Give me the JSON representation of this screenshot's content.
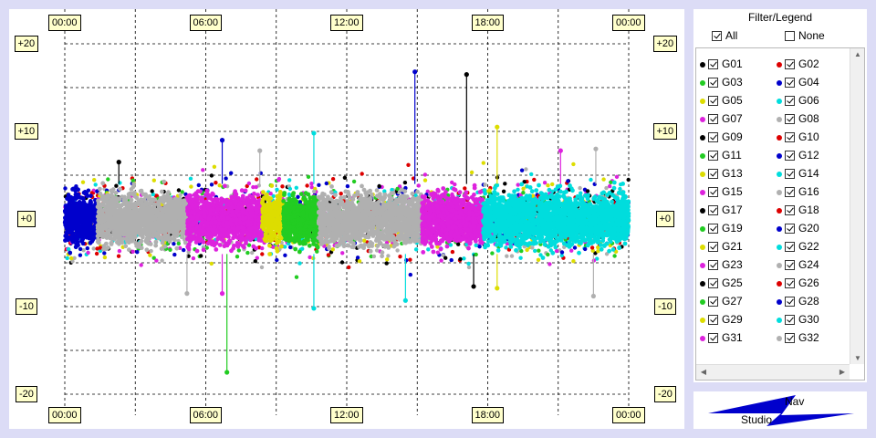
{
  "chart_data": {
    "type": "scatter",
    "title": "",
    "xlabel": "",
    "ylabel": "",
    "x_ticks": [
      "00:00",
      "06:00",
      "12:00",
      "18:00",
      "00:00"
    ],
    "y_ticks": [
      "+20",
      "+10",
      "+0",
      "-10",
      "-20"
    ],
    "y_tick_values": [
      20,
      10,
      0,
      -10,
      -20
    ],
    "xlim_hours": [
      0,
      24
    ],
    "ylim": [
      -20,
      20
    ],
    "grid": true,
    "legend_placement": "right",
    "series_colors": [
      "#000000",
      "#dd0000",
      "#22cc22",
      "#0000cc",
      "#dddd00",
      "#00dddd",
      "#dd22dd",
      "#b0b0b0"
    ],
    "dominant_segments": [
      {
        "series": "G28",
        "start_hour": 0.0,
        "end_hour": 1.4
      },
      {
        "series": "G08",
        "start_hour": 1.4,
        "end_hour": 5.2
      },
      {
        "series": "G15",
        "start_hour": 5.2,
        "end_hour": 8.4
      },
      {
        "series": "G13",
        "start_hour": 8.4,
        "end_hour": 9.3
      },
      {
        "series": "G19",
        "start_hour": 9.3,
        "end_hour": 10.8
      },
      {
        "series": "G24",
        "start_hour": 10.8,
        "end_hour": 15.2
      },
      {
        "series": "G23",
        "start_hour": 15.2,
        "end_hour": 17.8
      },
      {
        "series": "G22",
        "start_hour": 17.8,
        "end_hour": 24.0
      }
    ],
    "spikes": [
      {
        "series": "G03",
        "time_hour": 6.9,
        "value": -17.5
      },
      {
        "series": "G01",
        "time_hour": 17.1,
        "value": 16.5
      },
      {
        "series": "G04",
        "time_hour": 14.9,
        "value": 16.8
      },
      {
        "series": "G05",
        "time_hour": 18.4,
        "value": 10.5
      },
      {
        "series": "G04",
        "time_hour": 6.7,
        "value": 9.0
      },
      {
        "series": "G08",
        "time_hour": 8.3,
        "value": 7.8
      },
      {
        "series": "G06",
        "time_hour": 10.6,
        "value": 9.8
      },
      {
        "series": "G06",
        "time_hour": 14.5,
        "value": -9.3
      },
      {
        "series": "G08",
        "time_hour": 5.2,
        "value": -8.5
      },
      {
        "series": "G07",
        "time_hour": 6.7,
        "value": -8.5
      },
      {
        "series": "G01",
        "time_hour": 17.4,
        "value": -7.7
      },
      {
        "series": "G05",
        "time_hour": 18.4,
        "value": -7.9
      },
      {
        "series": "G08",
        "time_hour": 22.5,
        "value": -8.8
      },
      {
        "series": "G08",
        "time_hour": 22.6,
        "value": 8.0
      },
      {
        "series": "G07",
        "time_hour": 21.1,
        "value": 7.8
      },
      {
        "series": "G06",
        "time_hour": 10.6,
        "value": -10.2
      },
      {
        "series": "G01",
        "time_hour": 2.3,
        "value": 6.5
      }
    ],
    "series": [
      {
        "name": "G01",
        "color": "#000000",
        "checked": true
      },
      {
        "name": "G02",
        "color": "#dd0000",
        "checked": true
      },
      {
        "name": "G03",
        "color": "#22cc22",
        "checked": true
      },
      {
        "name": "G04",
        "color": "#0000cc",
        "checked": true
      },
      {
        "name": "G05",
        "color": "#dddd00",
        "checked": true
      },
      {
        "name": "G06",
        "color": "#00dddd",
        "checked": true
      },
      {
        "name": "G07",
        "color": "#dd22dd",
        "checked": true
      },
      {
        "name": "G08",
        "color": "#b0b0b0",
        "checked": true
      },
      {
        "name": "G09",
        "color": "#000000",
        "checked": true
      },
      {
        "name": "G10",
        "color": "#dd0000",
        "checked": true
      },
      {
        "name": "G11",
        "color": "#22cc22",
        "checked": true
      },
      {
        "name": "G12",
        "color": "#0000cc",
        "checked": true
      },
      {
        "name": "G13",
        "color": "#dddd00",
        "checked": true
      },
      {
        "name": "G14",
        "color": "#00dddd",
        "checked": true
      },
      {
        "name": "G15",
        "color": "#dd22dd",
        "checked": true
      },
      {
        "name": "G16",
        "color": "#b0b0b0",
        "checked": true
      },
      {
        "name": "G17",
        "color": "#000000",
        "checked": true
      },
      {
        "name": "G18",
        "color": "#dd0000",
        "checked": true
      },
      {
        "name": "G19",
        "color": "#22cc22",
        "checked": true
      },
      {
        "name": "G20",
        "color": "#0000cc",
        "checked": true
      },
      {
        "name": "G21",
        "color": "#dddd00",
        "checked": true
      },
      {
        "name": "G22",
        "color": "#00dddd",
        "checked": true
      },
      {
        "name": "G23",
        "color": "#dd22dd",
        "checked": true
      },
      {
        "name": "G24",
        "color": "#b0b0b0",
        "checked": true
      },
      {
        "name": "G25",
        "color": "#000000",
        "checked": true
      },
      {
        "name": "G26",
        "color": "#dd0000",
        "checked": true
      },
      {
        "name": "G27",
        "color": "#22cc22",
        "checked": true
      },
      {
        "name": "G28",
        "color": "#0000cc",
        "checked": true
      },
      {
        "name": "G29",
        "color": "#dddd00",
        "checked": true
      },
      {
        "name": "G30",
        "color": "#00dddd",
        "checked": true
      },
      {
        "name": "G31",
        "color": "#dd22dd",
        "checked": true
      },
      {
        "name": "G32",
        "color": "#b0b0b0",
        "checked": true
      }
    ]
  },
  "legend": {
    "title": "Filter/Legend",
    "all_label": "All",
    "all_checked": true,
    "none_label": "None",
    "none_checked": false
  },
  "logo": {
    "top_text": "Nav",
    "bottom_text": "Studio",
    "accent_color": "#0000cc"
  }
}
